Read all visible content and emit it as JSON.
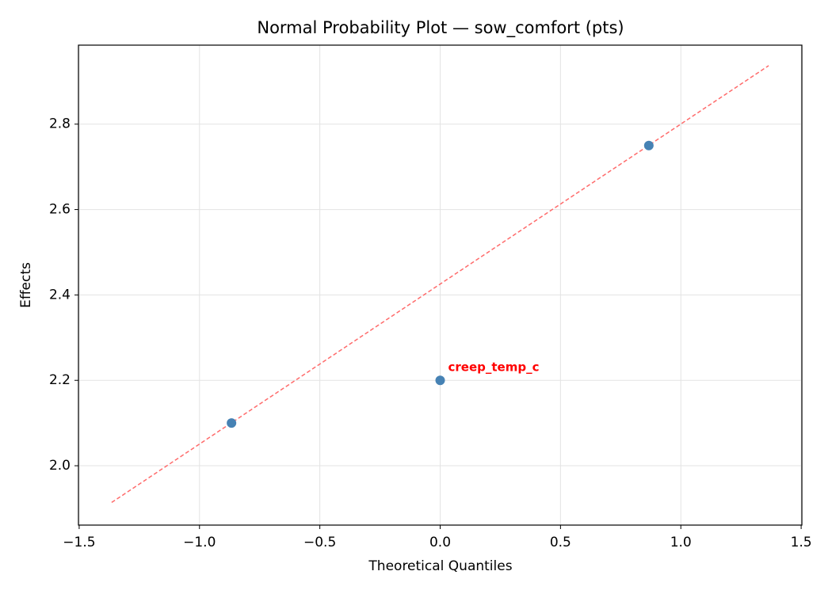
{
  "chart_data": {
    "type": "scatter",
    "title": "Normal Probability Plot — sow_comfort (pts)",
    "x_label": "Theoretical Quantiles",
    "y_label": "Effects",
    "x": [
      -0.867,
      0,
      0.867
    ],
    "values": [
      2.1,
      2.2,
      2.75
    ],
    "color": "#4682b4",
    "fit_line": {
      "x": [
        -1.365,
        1.365
      ],
      "y": [
        1.914,
        2.937
      ],
      "color": "#ff6b6b"
    },
    "annotations": [
      {
        "text": "creep_temp_c",
        "x": 0,
        "y": 2.2,
        "color": "#ff0000"
      }
    ],
    "xlim": [
      -1.503,
      1.503
    ],
    "ylim": [
      1.861,
      2.985
    ],
    "xticks": [
      {
        "value": -1.5,
        "label": "−1.5"
      },
      {
        "value": -1.0,
        "label": "−1.0"
      },
      {
        "value": -0.5,
        "label": "−0.5"
      },
      {
        "value": 0.0,
        "label": "0.0"
      },
      {
        "value": 0.5,
        "label": "0.5"
      },
      {
        "value": 1.0,
        "label": "1.0"
      },
      {
        "value": 1.5,
        "label": "1.5"
      }
    ],
    "yticks": [
      {
        "value": 2.0,
        "label": "2.0"
      },
      {
        "value": 2.2,
        "label": "2.2"
      },
      {
        "value": 2.4,
        "label": "2.4"
      },
      {
        "value": 2.6,
        "label": "2.6"
      },
      {
        "value": 2.8,
        "label": "2.8"
      }
    ],
    "grid": true
  }
}
